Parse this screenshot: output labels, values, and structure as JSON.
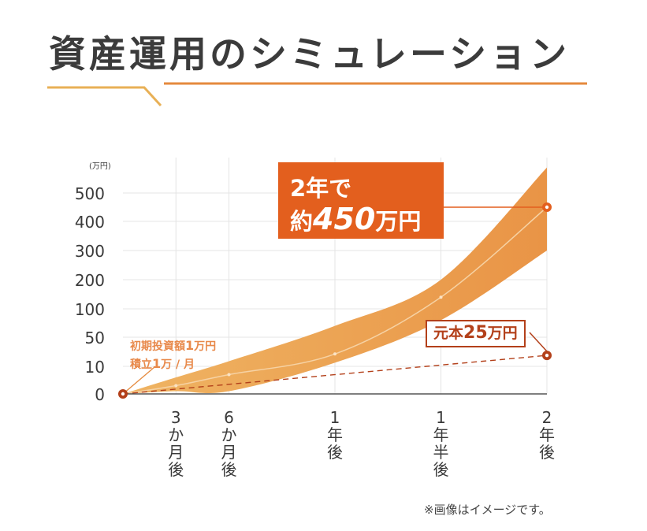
{
  "title": "資産運用のシミュレーション",
  "note": "※画像はイメージです。",
  "colors": {
    "band": "#e99446",
    "band_light": "#efb463",
    "accent": "#e35f1e",
    "principal": "#b3401a",
    "deco_gold": "#e8b056",
    "deco_orange": "#e58a3e",
    "grid": "#e4e4e4"
  },
  "chart_data": {
    "type": "area",
    "unit_label": "(万円)",
    "y_ticks": [
      "0",
      "10",
      "50",
      "100",
      "200",
      "300",
      "400",
      "500"
    ],
    "x_ticks": [
      "3か月後",
      "6か月後",
      "1年後",
      "1年半後",
      "2年後"
    ],
    "x_positions_months": [
      3,
      6,
      12,
      18,
      24
    ],
    "series": [
      {
        "x_months": [
          0,
          3,
          6,
          12,
          18,
          24
        ],
        "y": [
          0,
          3,
          7,
          27,
          140,
          450
        ]
      },
      {
        "name": "元本",
        "x_months": [
          0,
          24
        ],
        "y": [
          0,
          25
        ],
        "style": "dashed"
      }
    ],
    "band": {
      "x_months": [
        0,
        3,
        6,
        12,
        18,
        24
      ],
      "upper": [
        0,
        6,
        17,
        70,
        200,
        590
      ],
      "lower": [
        0,
        1,
        1,
        15,
        80,
        300
      ]
    },
    "annotations": {
      "final": {
        "line1": "2年で",
        "line2_prefix": "約",
        "line2_value": "450",
        "line2_suffix": "万円"
      },
      "principal": {
        "prefix": "元本",
        "value": "25",
        "suffix": "万円"
      },
      "initial": {
        "line1_prefix": "初期投資額",
        "line1_value": "1",
        "line1_suffix": "万円",
        "line2_prefix": "積立",
        "line2_value": "1",
        "line2_suffix": "万 / 月"
      }
    }
  }
}
